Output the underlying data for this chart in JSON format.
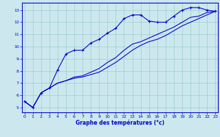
{
  "title": "Graphe des températures (°c)",
  "bg_color": "#cce8ee",
  "line_color": "#0000cc",
  "grid_color": "#99cccc",
  "x_ticks": [
    0,
    1,
    2,
    3,
    4,
    5,
    6,
    7,
    8,
    9,
    10,
    11,
    12,
    13,
    14,
    15,
    16,
    17,
    18,
    19,
    20,
    21,
    22,
    23
  ],
  "y_ticks": [
    5,
    6,
    7,
    8,
    9,
    10,
    11,
    12,
    13
  ],
  "xlim": [
    -0.3,
    23.3
  ],
  "ylim": [
    4.6,
    13.6
  ],
  "line1_x": [
    0,
    1,
    2,
    3,
    4,
    5,
    6,
    7,
    8,
    9,
    10,
    11,
    12,
    13,
    14,
    15,
    16,
    17,
    18,
    19,
    20,
    21,
    22,
    23
  ],
  "line1_y": [
    5.5,
    5.0,
    6.2,
    6.6,
    8.1,
    9.4,
    9.7,
    9.7,
    10.3,
    10.6,
    11.1,
    11.5,
    12.3,
    12.6,
    12.6,
    12.1,
    12.0,
    12.0,
    12.5,
    13.0,
    13.2,
    13.2,
    13.0,
    12.9
  ],
  "line2_x": [
    0,
    1,
    2,
    3,
    4,
    5,
    6,
    7,
    8,
    9,
    10,
    11,
    12,
    13,
    14,
    15,
    16,
    17,
    18,
    19,
    20,
    21,
    22,
    23
  ],
  "line2_y": [
    5.5,
    5.0,
    6.2,
    6.6,
    7.0,
    7.2,
    7.4,
    7.5,
    7.7,
    7.9,
    8.3,
    8.7,
    9.2,
    9.7,
    10.1,
    10.4,
    10.6,
    10.9,
    11.3,
    11.7,
    12.0,
    12.3,
    12.6,
    12.9
  ],
  "line3_x": [
    0,
    1,
    2,
    3,
    4,
    5,
    6,
    7,
    8,
    9,
    10,
    11,
    12,
    13,
    14,
    15,
    16,
    17,
    18,
    19,
    20,
    21,
    22,
    23
  ],
  "line3_y": [
    5.5,
    5.0,
    6.2,
    6.6,
    7.0,
    7.2,
    7.5,
    7.6,
    7.9,
    8.2,
    8.7,
    9.1,
    9.7,
    10.2,
    10.4,
    10.7,
    11.0,
    11.3,
    11.6,
    12.0,
    12.4,
    12.5,
    12.8,
    12.9
  ]
}
